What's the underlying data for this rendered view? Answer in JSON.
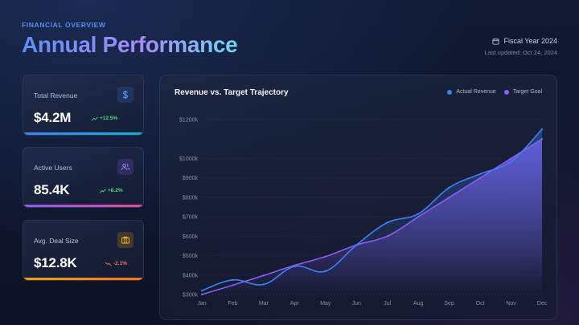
{
  "header": {
    "eyebrow": "FINANCIAL OVERVIEW",
    "title": "Annual Performance",
    "fiscal_year": "Fiscal Year 2024",
    "last_updated": "Last updated: Oct 24, 2024"
  },
  "kpis": [
    {
      "label": "Total Revenue",
      "value": "$4.2M",
      "delta": "+12.5%",
      "trend": "up",
      "icon": "dollar-icon",
      "accent": "#3b82f6",
      "accent2": "#06b6d4",
      "delta_color": "#4ade80"
    },
    {
      "label": "Active Users",
      "value": "85.4K",
      "delta": "+8.2%",
      "trend": "up",
      "icon": "users-icon",
      "accent": "#8b5cf6",
      "accent2": "#ec4899",
      "delta_color": "#4ade80"
    },
    {
      "label": "Avg. Deal Size",
      "value": "$12.8K",
      "delta": "-2.1%",
      "trend": "down",
      "icon": "briefcase-icon",
      "accent": "#f59e0b",
      "accent2": "#f97316",
      "delta_color": "#f87171"
    }
  ],
  "chart_data": {
    "type": "area",
    "title": "Revenue vs. Target Trajectory",
    "categories": [
      "Jan",
      "Feb",
      "Mar",
      "Apr",
      "May",
      "Jun",
      "Jul",
      "Aug",
      "Sep",
      "Oct",
      "Nov",
      "Dec"
    ],
    "series": [
      {
        "name": "Actual Revenue",
        "color": "#3b82f6",
        "values": [
          320,
          375,
          352,
          445,
          420,
          555,
          670,
          715,
          850,
          920,
          985,
          1150
        ]
      },
      {
        "name": "Target Goal",
        "color": "#8b5cf6",
        "values": [
          300,
          348,
          398,
          450,
          495,
          555,
          600,
          700,
          800,
          900,
          1000,
          1100
        ]
      }
    ],
    "yticks": [
      "$300k",
      "$400k",
      "$500k",
      "$600k",
      "$700k",
      "$800k",
      "$900k",
      "$1000k",
      "$1200k"
    ],
    "ylim": [
      300,
      1200
    ],
    "grid": true,
    "legend_position": "top-right"
  }
}
